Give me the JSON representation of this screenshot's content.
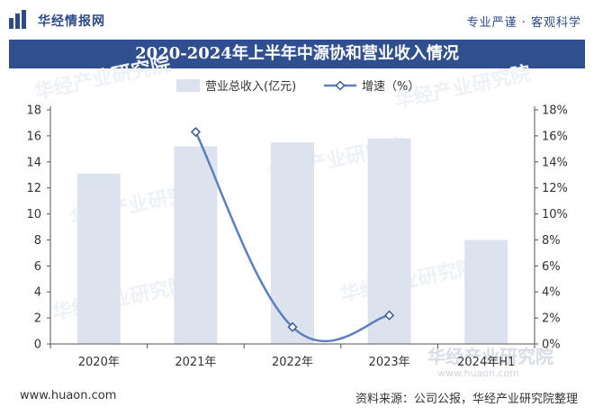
{
  "header": {
    "logo_text": "华经情报网",
    "slogan": "专业严谨 · 客观科学"
  },
  "chart_data": {
    "type": "bar",
    "title": "2020-2024年上半年中源协和营业收入情况",
    "categories": [
      "2020年",
      "2021年",
      "2022年",
      "2023年",
      "2024年H1"
    ],
    "series": [
      {
        "name": "营业总收入(亿元)",
        "type": "bar",
        "axis": "left",
        "values": [
          13.1,
          15.2,
          15.5,
          15.8,
          8.0
        ]
      },
      {
        "name": "增速（%）",
        "type": "line",
        "axis": "right",
        "values": [
          null,
          16.3,
          1.3,
          2.2,
          null
        ]
      }
    ],
    "y_left": {
      "min": 0,
      "max": 18,
      "step": 2,
      "ticks": [
        "0",
        "2",
        "4",
        "6",
        "8",
        "10",
        "12",
        "14",
        "16",
        "18"
      ]
    },
    "y_right": {
      "min": 0,
      "max": 18,
      "step": 2,
      "ticks": [
        "0%",
        "2%",
        "4%",
        "6%",
        "8%",
        "10%",
        "12%",
        "14%",
        "16%",
        "18%"
      ]
    },
    "legend_position": "top-center",
    "grid": false,
    "colors": {
      "bar": "#dde3ee",
      "line": "#5b7fbf",
      "marker_fill": "#ffffff"
    }
  },
  "watermark": {
    "lines": [
      "华经产业研究院",
      "www.huaon.com"
    ]
  },
  "footer": {
    "url": "www.huaon.com",
    "source": "资料来源：公司公报，华经产业研究院整理"
  }
}
